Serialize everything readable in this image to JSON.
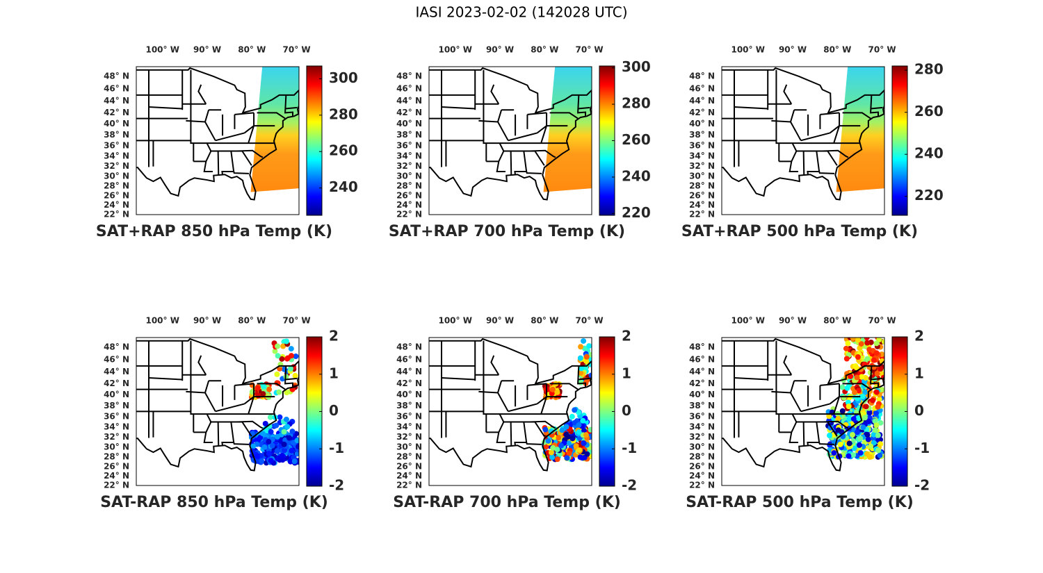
{
  "title": "IASI 2023-02-02 (142028 UTC)",
  "map": {
    "lonlim": [
      -106.8,
      -70.4
    ],
    "latlim": [
      22,
      49.5
    ],
    "lonticks": [
      {
        "value": -100,
        "label": "100° W"
      },
      {
        "value": -90,
        "label": "90° W"
      },
      {
        "value": -80,
        "label": "80° W"
      },
      {
        "value": -70,
        "label": "70° W"
      }
    ],
    "latticks": [
      {
        "value": 22,
        "label": "22° N"
      },
      {
        "value": 24,
        "label": "24° N"
      },
      {
        "value": 26,
        "label": "26° N"
      },
      {
        "value": 28,
        "label": "28° N"
      },
      {
        "value": 30,
        "label": "30° N"
      },
      {
        "value": 32,
        "label": "32° N"
      },
      {
        "value": 34,
        "label": "34° N"
      },
      {
        "value": 36,
        "label": "36° N"
      },
      {
        "value": 38,
        "label": "38° N"
      },
      {
        "value": 40,
        "label": "40° N"
      },
      {
        "value": 42,
        "label": "42° N"
      },
      {
        "value": 44,
        "label": "44° N"
      },
      {
        "value": 46,
        "label": "46° N"
      },
      {
        "value": 48,
        "label": "48° N"
      }
    ]
  },
  "panels": [
    {
      "title": "SAT+RAP 850 hPa Temp (K)",
      "clim": [
        225,
        307
      ],
      "cticks": [
        240,
        260,
        280,
        300
      ]
    },
    {
      "title": "SAT+RAP 700 hPa Temp (K)",
      "clim": [
        219,
        301
      ],
      "cticks": [
        220,
        240,
        260,
        280,
        300
      ]
    },
    {
      "title": "SAT+RAP 500 hPa Temp (K)",
      "clim": [
        211,
        282
      ],
      "cticks": [
        220,
        240,
        260,
        280
      ]
    },
    {
      "title": "SAT-RAP 850 hPa Temp (K)",
      "clim": [
        -2,
        2
      ],
      "cticks": [
        -2,
        -1,
        0,
        1,
        2
      ]
    },
    {
      "title": "SAT-RAP 700 hPa Temp (K)",
      "clim": [
        -2,
        2
      ],
      "cticks": [
        -2,
        -1,
        0,
        1,
        2
      ]
    },
    {
      "title": "SAT-RAP 500 hPa Temp (K)",
      "clim": [
        -2,
        2
      ],
      "cticks": [
        -2,
        -1,
        0,
        1,
        2
      ]
    }
  ]
}
